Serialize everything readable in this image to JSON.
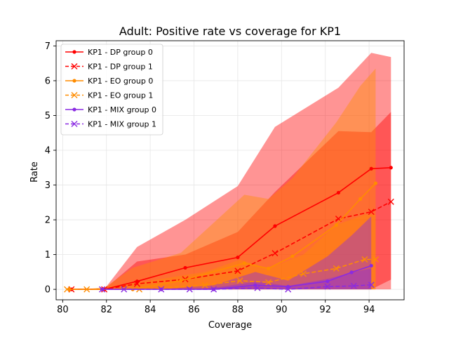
{
  "chart_data": {
    "type": "line",
    "title": "Adult: Positive rate vs coverage for KP1",
    "xlabel": "Coverage",
    "ylabel": "Rate",
    "xlim": [
      79.7,
      95.6
    ],
    "ylim": [
      -0.3,
      7.15
    ],
    "xticks": [
      80,
      82,
      84,
      86,
      88,
      90,
      92,
      94
    ],
    "yticks": [
      0,
      1,
      2,
      3,
      4,
      5,
      6,
      7
    ],
    "grid": true,
    "legend_position": "top-left",
    "series": [
      {
        "name": "KP1 - DP group 0",
        "color": "#ff0000",
        "dash": "solid",
        "marker": "dot",
        "x": [
          80.4,
          81.9,
          83.4,
          85.6,
          88.0,
          89.7,
          92.6,
          94.1,
          95.0
        ],
        "y": [
          0.0,
          0.0,
          0.23,
          0.62,
          0.92,
          1.82,
          2.78,
          3.47,
          3.5
        ],
        "band_low": [
          0.0,
          0.0,
          0.0,
          0.0,
          0.0,
          0.0,
          0.0,
          0.0,
          0.0
        ],
        "band_high": [
          0.0,
          0.0,
          1.22,
          2.0,
          2.97,
          4.67,
          5.8,
          6.8,
          6.68
        ]
      },
      {
        "name": "KP1 - DP group 1",
        "color": "#ff0000",
        "dash": "dashed",
        "marker": "x",
        "x": [
          80.4,
          81.9,
          83.4,
          85.6,
          88.0,
          89.7,
          92.6,
          94.1,
          95.0
        ],
        "y": [
          0.0,
          0.0,
          0.16,
          0.29,
          0.53,
          1.04,
          2.03,
          2.23,
          2.52
        ],
        "band_low": [
          0.0,
          0.0,
          0.0,
          0.0,
          0.0,
          0.0,
          0.0,
          0.0,
          0.28
        ],
        "band_high": [
          0.0,
          0.0,
          0.8,
          1.0,
          1.65,
          2.8,
          4.55,
          4.52,
          5.1
        ]
      },
      {
        "name": "KP1 - EO group 0",
        "color": "#ff8c00",
        "dash": "solid",
        "marker": "dot",
        "x": [
          80.3,
          81.8,
          83.2,
          85.4,
          88.3,
          89.4,
          90.5,
          92.5,
          93.6,
          94.3
        ],
        "y": [
          0.0,
          0.0,
          0.0,
          0.25,
          0.75,
          0.6,
          0.95,
          1.85,
          2.6,
          3.05
        ],
        "band_low": [
          0.0,
          0.0,
          0.0,
          0.0,
          0.0,
          0.0,
          0.0,
          0.0,
          0.0,
          0.0
        ],
        "band_high": [
          0.0,
          0.0,
          0.62,
          1.05,
          2.72,
          2.6,
          3.2,
          4.8,
          5.85,
          6.35
        ]
      },
      {
        "name": "KP1 - EO group 1",
        "color": "#ff8c00",
        "dash": "dashed",
        "marker": "x",
        "x": [
          80.2,
          81.1,
          83.5,
          86.5,
          88.1,
          89.4,
          91.0,
          92.5,
          93.8,
          94.3
        ],
        "y": [
          0.0,
          0.0,
          0.0,
          0.12,
          0.25,
          0.2,
          0.45,
          0.6,
          0.86,
          0.86
        ],
        "band_low": [
          0.0,
          0.0,
          0.0,
          0.0,
          0.0,
          0.0,
          0.0,
          0.0,
          0.0,
          0.0
        ],
        "band_high": [
          0.0,
          0.0,
          0.2,
          0.5,
          0.85,
          0.6,
          1.0,
          1.85,
          2.15,
          2.15
        ]
      },
      {
        "name": "KP1 - MIX group 0",
        "color": "#8a2be2",
        "dash": "solid",
        "marker": "dot",
        "x": [
          81.8,
          84.5,
          86.9,
          88.8,
          90.3,
          92.1,
          93.2,
          94.1
        ],
        "y": [
          0.0,
          0.0,
          0.0,
          0.12,
          0.08,
          0.23,
          0.49,
          0.68
        ],
        "band_low": [
          0.0,
          0.0,
          0.0,
          0.0,
          0.0,
          0.0,
          0.0,
          0.0
        ],
        "band_high": [
          0.0,
          0.0,
          0.12,
          0.5,
          0.25,
          0.95,
          1.55,
          2.1
        ]
      },
      {
        "name": "KP1 - MIX group 1",
        "color": "#8a2be2",
        "dash": "dashed",
        "marker": "x",
        "x": [
          81.8,
          82.8,
          84.5,
          85.8,
          86.9,
          88.9,
          90.3,
          92.1,
          93.3,
          94.1
        ],
        "y": [
          0.0,
          0.0,
          0.0,
          0.0,
          0.0,
          0.04,
          0.0,
          0.08,
          0.1,
          0.13
        ],
        "band_low": [
          0.0,
          0.0,
          0.0,
          0.0,
          0.0,
          0.0,
          0.0,
          0.0,
          0.0,
          0.0
        ],
        "band_high": [
          0.0,
          0.0,
          0.0,
          0.0,
          0.05,
          0.22,
          0.1,
          0.3,
          0.5,
          0.6
        ]
      }
    ]
  }
}
